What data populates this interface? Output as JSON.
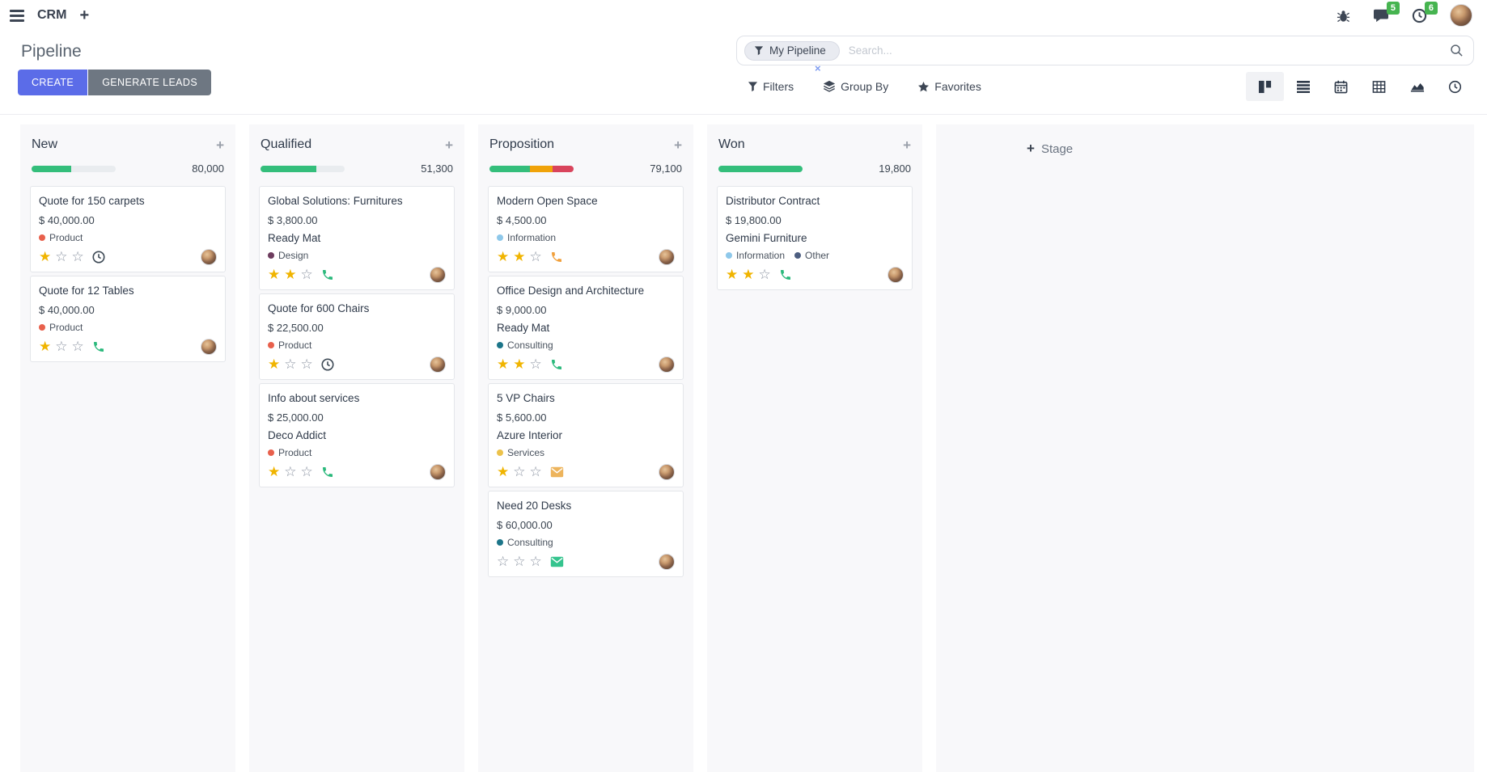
{
  "navbar": {
    "app_name": "CRM",
    "messages_badge": "5",
    "activities_badge": "6",
    "badge_color": "#46b450"
  },
  "control_panel": {
    "title": "Pipeline",
    "create_label": "CREATE",
    "generate_label": "GENERATE LEADS",
    "create_color": "#5b6ce8",
    "generate_color": "#6e7782",
    "search": {
      "facet_label": "My Pipeline",
      "facet_remove": "×",
      "placeholder": "Search..."
    },
    "menus": {
      "filters": "Filters",
      "group_by": "Group By",
      "favorites": "Favorites"
    },
    "view_switcher": [
      "kanban",
      "list",
      "calendar",
      "pivot",
      "graph",
      "activity"
    ],
    "active_view": "kanban"
  },
  "board": {
    "add_stage_label": "Stage",
    "progress_track_color": "#e9ecef",
    "columns": [
      {
        "name": "New",
        "value": "80,000",
        "progress": [
          {
            "color": "#34be7b",
            "pct": 47
          }
        ],
        "cards": [
          {
            "title": "Quote for 150 carpets",
            "amount": "$ 40,000.00",
            "tags": [
              {
                "label": "Product",
                "color": "#e8604c"
              }
            ],
            "stars": 1,
            "activity": {
              "type": "clock",
              "color": "#3e4a56"
            }
          },
          {
            "title": "Quote for 12 Tables",
            "amount": "$ 40,000.00",
            "tags": [
              {
                "label": "Product",
                "color": "#e8604c"
              }
            ],
            "stars": 1,
            "activity": {
              "type": "phone",
              "color": "#2bb97c"
            }
          }
        ]
      },
      {
        "name": "Qualified",
        "value": "51,300",
        "progress": [
          {
            "color": "#34be7b",
            "pct": 66
          }
        ],
        "cards": [
          {
            "title": "Global Solutions: Furnitures",
            "amount": "$ 3,800.00",
            "partner": "Ready Mat",
            "tags": [
              {
                "label": "Design",
                "color": "#6d3c5e"
              }
            ],
            "stars": 2,
            "activity": {
              "type": "phone",
              "color": "#2bb97c"
            }
          },
          {
            "title": "Quote for 600 Chairs",
            "amount": "$ 22,500.00",
            "tags": [
              {
                "label": "Product",
                "color": "#e8604c"
              }
            ],
            "stars": 1,
            "activity": {
              "type": "clock",
              "color": "#3e4a56"
            }
          },
          {
            "title": "Info about services",
            "amount": "$ 25,000.00",
            "partner": "Deco Addict",
            "tags": [
              {
                "label": "Product",
                "color": "#e8604c"
              }
            ],
            "stars": 1,
            "activity": {
              "type": "phone",
              "color": "#2bb97c"
            }
          }
        ]
      },
      {
        "name": "Proposition",
        "value": "79,100",
        "progress": [
          {
            "color": "#34be7b",
            "pct": 48
          },
          {
            "color": "#f0a30a",
            "pct": 27
          },
          {
            "color": "#d9445c",
            "pct": 25
          }
        ],
        "cards": [
          {
            "title": "Modern Open Space",
            "amount": "$ 4,500.00",
            "tags": [
              {
                "label": "Information",
                "color": "#8ec8ea"
              }
            ],
            "stars": 2,
            "activity": {
              "type": "phone",
              "color": "#f1a03c"
            }
          },
          {
            "title": "Office Design and Architecture",
            "amount": "$ 9,000.00",
            "partner": "Ready Mat",
            "tags": [
              {
                "label": "Consulting",
                "color": "#1c7589"
              }
            ],
            "stars": 2,
            "activity": {
              "type": "phone",
              "color": "#2bb97c"
            }
          },
          {
            "title": "5 VP Chairs",
            "amount": "$ 5,600.00",
            "partner": "Azure Interior",
            "tags": [
              {
                "label": "Services",
                "color": "#ecc24b"
              }
            ],
            "stars": 1,
            "activity": {
              "type": "envelope",
              "color": "#edb45c"
            }
          },
          {
            "title": "Need 20 Desks",
            "amount": "$ 60,000.00",
            "tags": [
              {
                "label": "Consulting",
                "color": "#1c7589"
              }
            ],
            "stars": 0,
            "activity": {
              "type": "envelope",
              "color": "#35c48e"
            }
          }
        ]
      },
      {
        "name": "Won",
        "value": "19,800",
        "progress": [
          {
            "color": "#34be7b",
            "pct": 100
          }
        ],
        "cards": [
          {
            "title": "Distributor Contract",
            "amount": "$ 19,800.00",
            "partner": "Gemini Furniture",
            "tags": [
              {
                "label": "Information",
                "color": "#8ec8ea"
              },
              {
                "label": "Other",
                "color": "#4d5e80"
              }
            ],
            "stars": 2,
            "activity": {
              "type": "phone",
              "color": "#2bb97c"
            }
          }
        ]
      }
    ]
  }
}
